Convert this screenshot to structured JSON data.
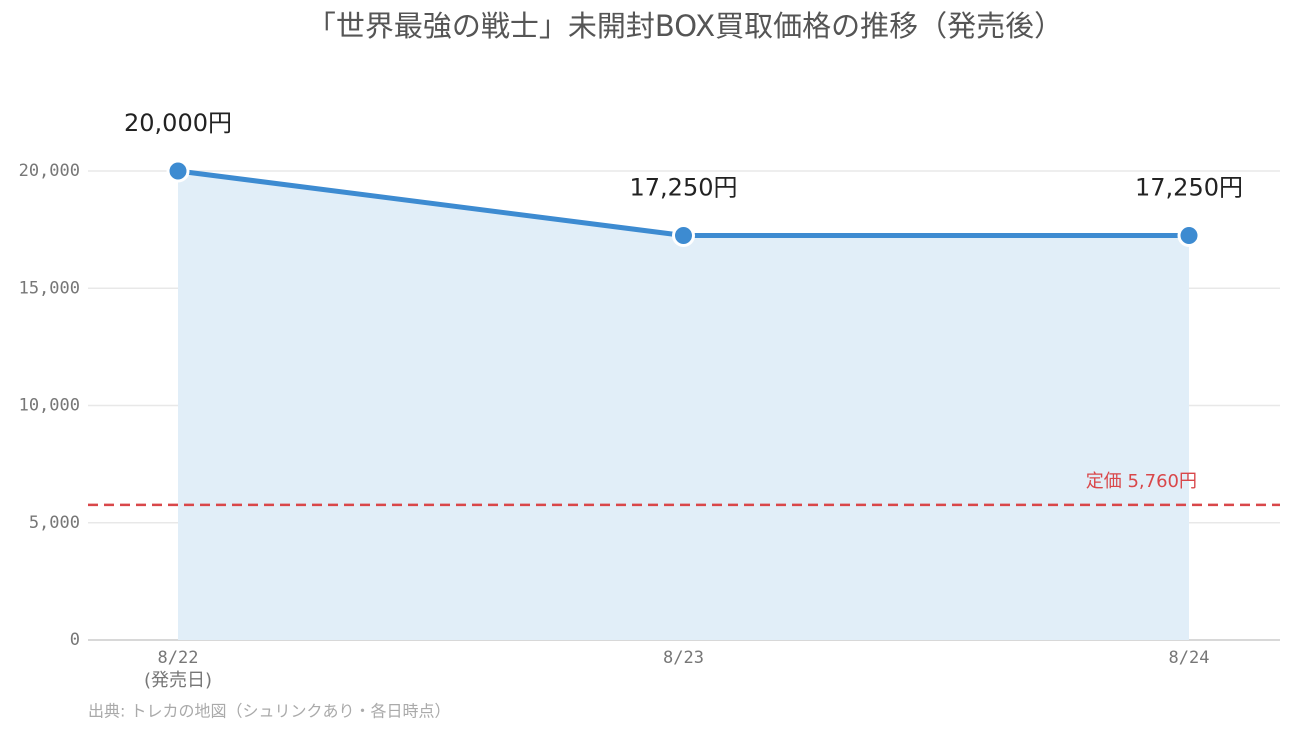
{
  "chart_data": {
    "type": "line",
    "title": "「世界最強の戦士」未開封BOX買取価格の推移（発売後）",
    "categories": [
      "8/22",
      "8/23",
      "8/24"
    ],
    "x_sublabels": [
      "(発売日)",
      null,
      null
    ],
    "values": [
      20000,
      17250,
      17250
    ],
    "value_labels": [
      "20,000円",
      "17,250円",
      "17,250円"
    ],
    "color": "#3d8bd1",
    "area_color": "#e1eef8",
    "ylim": [
      0,
      20000
    ],
    "yticks": [
      0,
      {
        "value": 5000,
        "label": "5,000"
      },
      {
        "value": 10000,
        "label": "10,000"
      },
      {
        "value": 15000,
        "label": "15,000"
      },
      {
        "value": 20000,
        "label": "20,000"
      }
    ],
    "grid": true,
    "reference_line": {
      "value": 5760,
      "label": "定価 5,760円",
      "color": "#d9474a"
    },
    "source": "出典: トレカの地図（シュリンクあり・各日時点）"
  }
}
